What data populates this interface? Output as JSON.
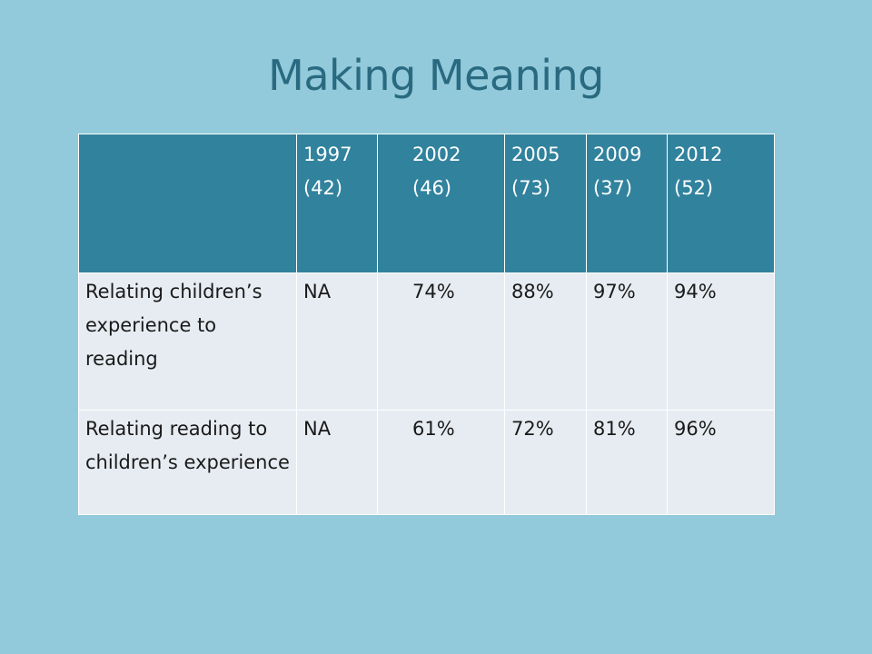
{
  "slide": {
    "title": "Making Meaning"
  },
  "table": {
    "headers": [
      "",
      "1997\n(42)",
      "2002\n(46)",
      "2005\n(73)",
      "2009\n(37)",
      "2012\n(52)"
    ],
    "rows": [
      {
        "label": "Relating children’s experience to reading",
        "values": [
          "NA",
          "74%",
          "88%",
          "97%",
          "94%"
        ]
      },
      {
        "label": "Relating reading to children’s experience",
        "values": [
          "NA",
          "61%",
          "72%",
          "81%",
          "96%"
        ]
      }
    ]
  },
  "colors": {
    "background": "#92cadb",
    "header_fill": "#31829d",
    "body_fill": "#e7ecf2",
    "title_text": "#2a6a80"
  }
}
